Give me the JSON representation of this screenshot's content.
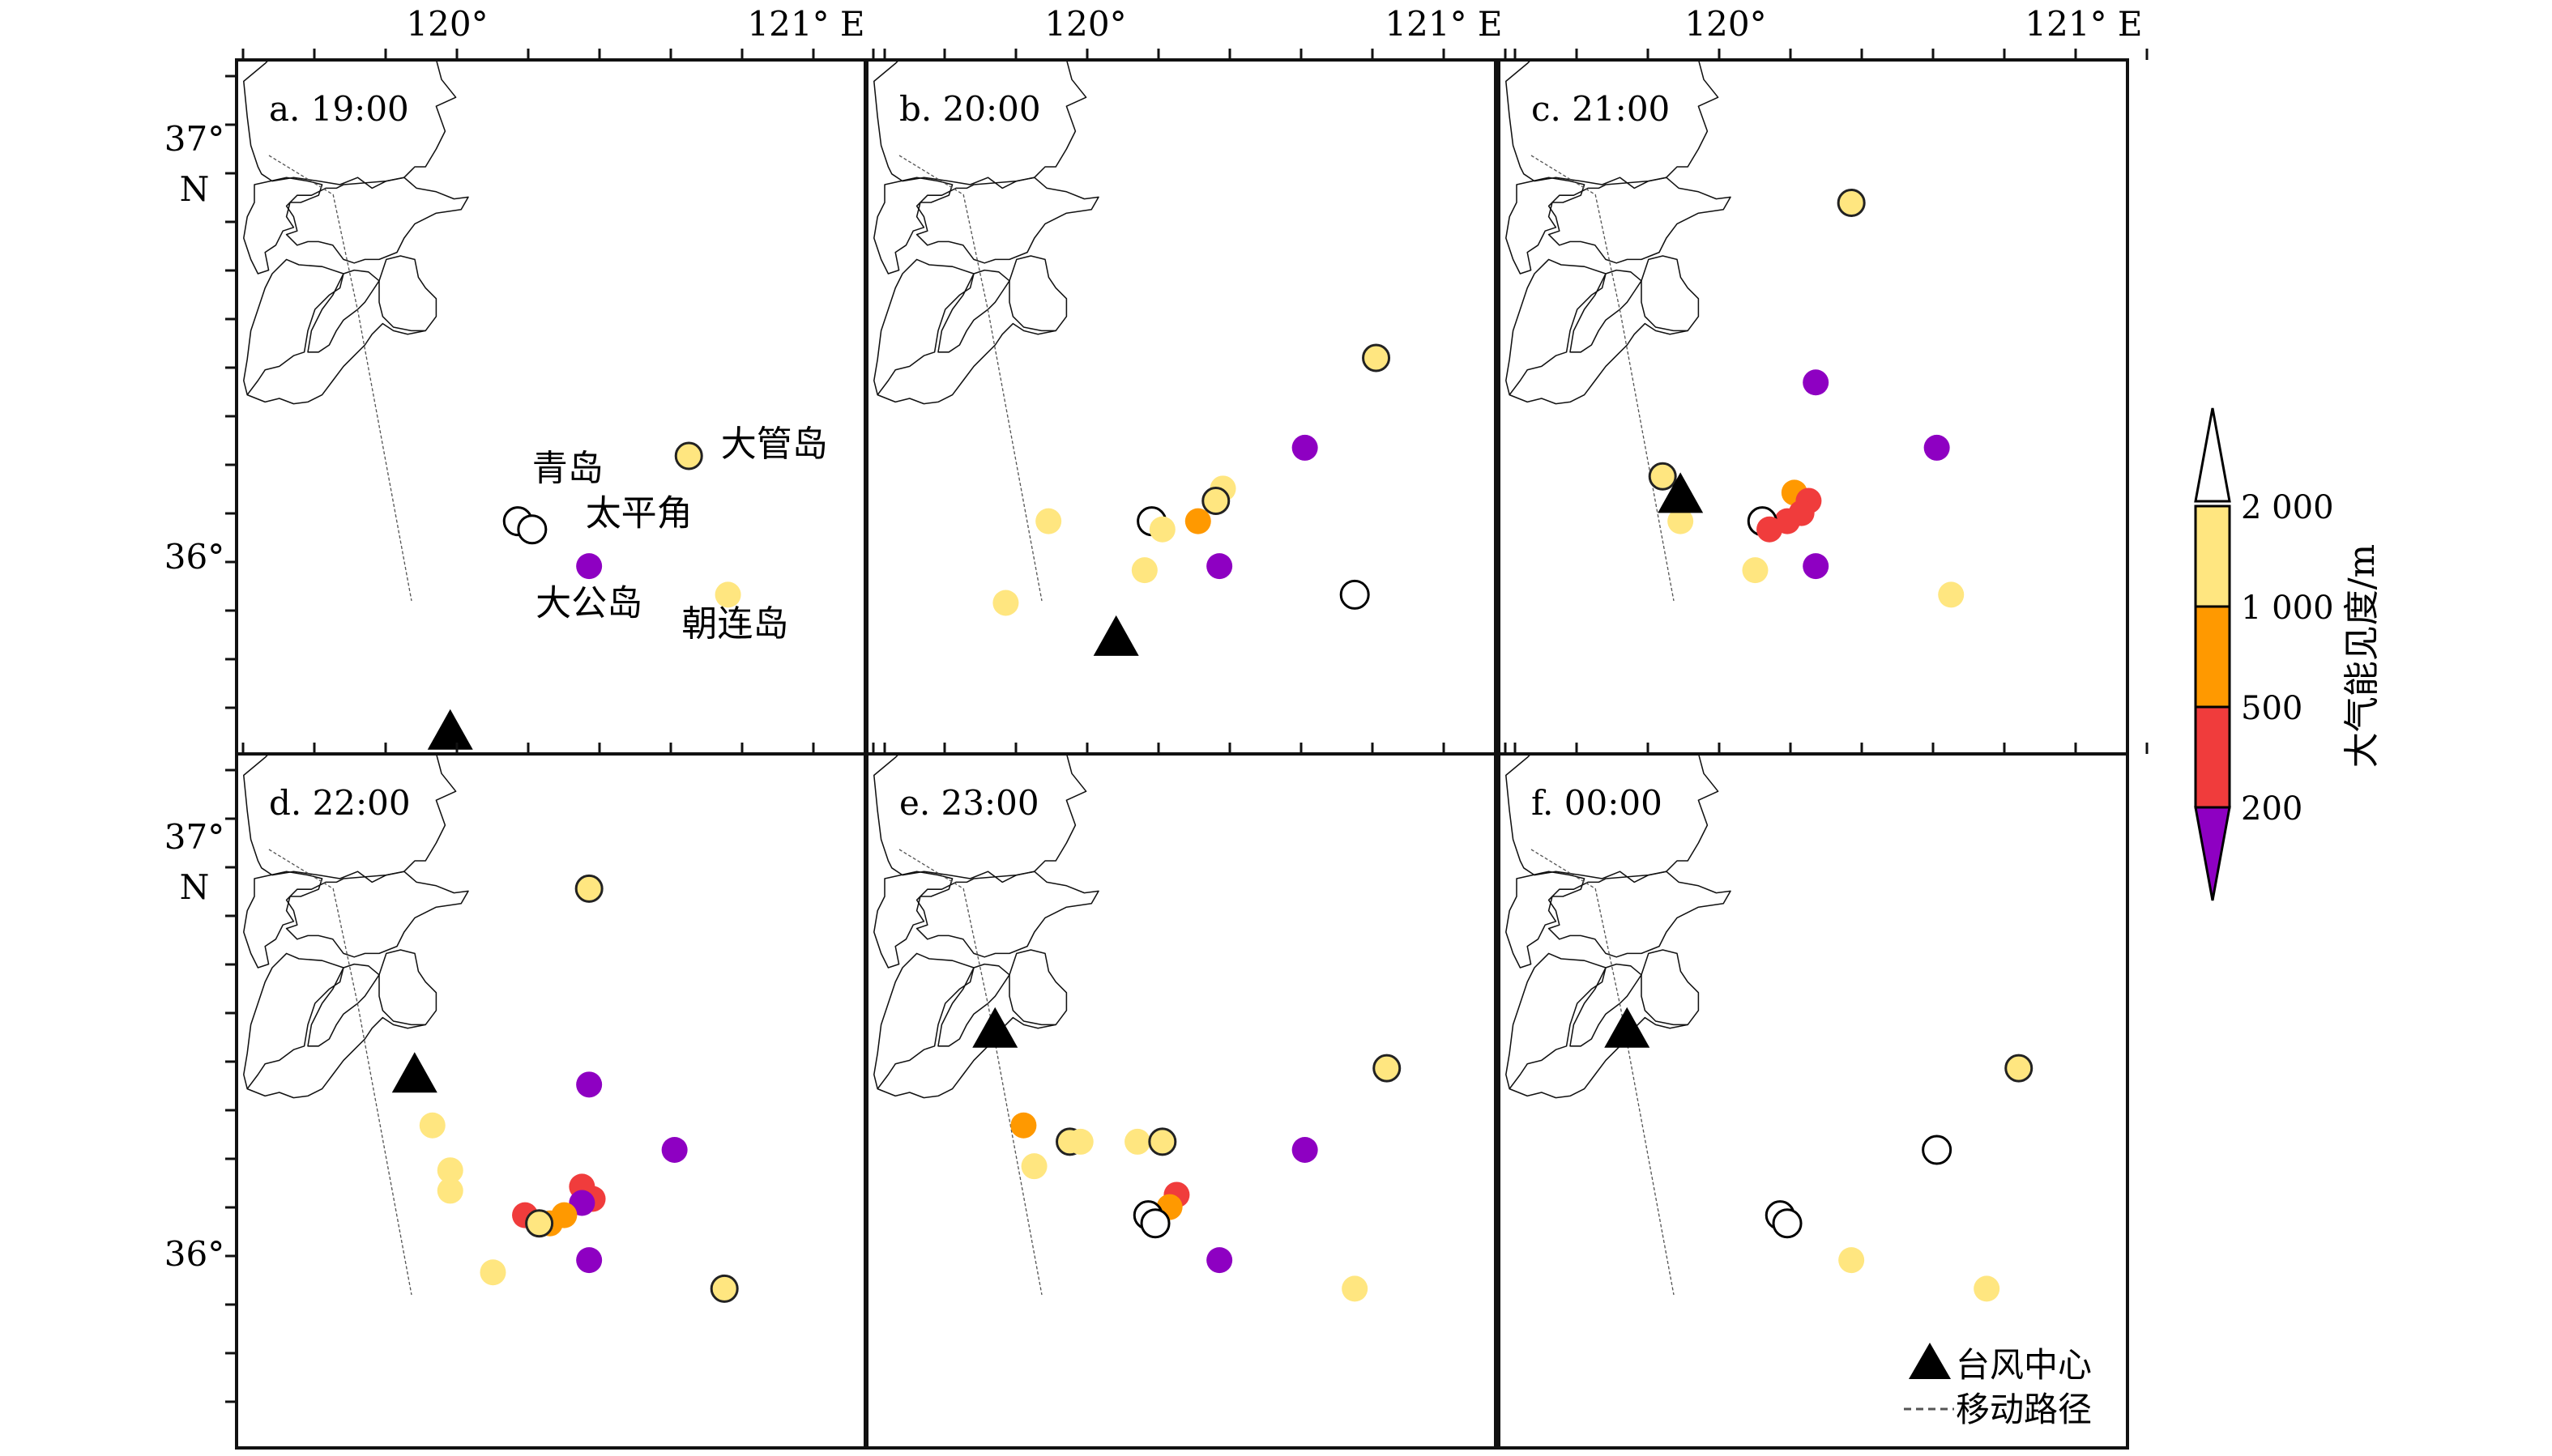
{
  "axes": {
    "lon_labels": [
      "120°",
      "121° E"
    ],
    "lat_labels": {
      "top_deg": "37°",
      "top_unit": "N",
      "bottom_deg": "36°"
    }
  },
  "panels": [
    {
      "id": "a",
      "title": "a. 19:00",
      "typhoon_center": {
        "lon": 120.1,
        "lat": 35.55
      },
      "points": [
        {
          "lon": 120.29,
          "lat": 36.07,
          "class": "white"
        },
        {
          "lon": 120.33,
          "lat": 36.05,
          "class": "white"
        },
        {
          "lon": 120.49,
          "lat": 35.96,
          "class": "purple"
        },
        {
          "lon": 120.77,
          "lat": 36.23,
          "class": "light"
        },
        {
          "lon": 120.88,
          "lat": 35.89,
          "class": "light"
        }
      ],
      "station_labels": [
        {
          "text": "青岛",
          "lon": 120.43,
          "lat": 36.17
        },
        {
          "text": "太平角",
          "lon": 120.63,
          "lat": 36.06
        },
        {
          "text": "大公岛",
          "lon": 120.49,
          "lat": 35.84
        },
        {
          "text": "大管岛",
          "lon": 121.01,
          "lat": 36.23
        },
        {
          "text": "朝连岛",
          "lon": 120.9,
          "lat": 35.79
        }
      ]
    },
    {
      "id": "b",
      "title": "b. 20:00",
      "typhoon_center": {
        "lon": 120.2,
        "lat": 35.78
      },
      "points": [
        {
          "lon": 120.93,
          "lat": 36.47,
          "class": "light"
        },
        {
          "lon": 120.73,
          "lat": 36.25,
          "class": "purple"
        },
        {
          "lon": 120.5,
          "lat": 36.15,
          "class": "light"
        },
        {
          "lon": 120.48,
          "lat": 36.12,
          "class": "light"
        },
        {
          "lon": 120.43,
          "lat": 36.07,
          "class": "orange"
        },
        {
          "lon": 120.01,
          "lat": 36.07,
          "class": "light"
        },
        {
          "lon": 120.3,
          "lat": 36.07,
          "class": "white"
        },
        {
          "lon": 120.33,
          "lat": 36.05,
          "class": "light"
        },
        {
          "lon": 120.28,
          "lat": 35.95,
          "class": "light"
        },
        {
          "lon": 120.49,
          "lat": 35.96,
          "class": "purple"
        },
        {
          "lon": 119.89,
          "lat": 35.87,
          "class": "light"
        },
        {
          "lon": 120.87,
          "lat": 35.89,
          "class": "white"
        }
      ]
    },
    {
      "id": "c",
      "title": "c. 21:00",
      "typhoon_center": {
        "lon": 120.01,
        "lat": 36.13
      },
      "points": [
        {
          "lon": 120.49,
          "lat": 36.85,
          "class": "light"
        },
        {
          "lon": 120.39,
          "lat": 36.41,
          "class": "purple"
        },
        {
          "lon": 120.73,
          "lat": 36.25,
          "class": "purple"
        },
        {
          "lon": 119.96,
          "lat": 36.18,
          "class": "light"
        },
        {
          "lon": 120.01,
          "lat": 36.07,
          "class": "light"
        },
        {
          "lon": 120.33,
          "lat": 36.14,
          "class": "orange"
        },
        {
          "lon": 120.37,
          "lat": 36.12,
          "class": "red"
        },
        {
          "lon": 120.35,
          "lat": 36.09,
          "class": "red"
        },
        {
          "lon": 120.31,
          "lat": 36.07,
          "class": "red"
        },
        {
          "lon": 120.24,
          "lat": 36.07,
          "class": "white"
        },
        {
          "lon": 120.26,
          "lat": 36.05,
          "class": "red"
        },
        {
          "lon": 120.22,
          "lat": 35.95,
          "class": "light"
        },
        {
          "lon": 120.39,
          "lat": 35.96,
          "class": "purple"
        },
        {
          "lon": 120.77,
          "lat": 35.89,
          "class": "light"
        }
      ]
    },
    {
      "id": "d",
      "title": "d. 22:00",
      "typhoon_center": {
        "lon": 120.0,
        "lat": 36.41
      },
      "points": [
        {
          "lon": 120.49,
          "lat": 36.87,
          "class": "light"
        },
        {
          "lon": 120.49,
          "lat": 36.39,
          "class": "purple"
        },
        {
          "lon": 120.05,
          "lat": 36.29,
          "class": "light"
        },
        {
          "lon": 120.73,
          "lat": 36.23,
          "class": "purple"
        },
        {
          "lon": 120.1,
          "lat": 36.18,
          "class": "light"
        },
        {
          "lon": 120.1,
          "lat": 36.13,
          "class": "light"
        },
        {
          "lon": 120.47,
          "lat": 36.14,
          "class": "red"
        },
        {
          "lon": 120.5,
          "lat": 36.11,
          "class": "red"
        },
        {
          "lon": 120.47,
          "lat": 36.1,
          "class": "purple"
        },
        {
          "lon": 120.42,
          "lat": 36.07,
          "class": "orange"
        },
        {
          "lon": 120.31,
          "lat": 36.07,
          "class": "red"
        },
        {
          "lon": 120.38,
          "lat": 36.05,
          "class": "orange"
        },
        {
          "lon": 120.35,
          "lat": 36.05,
          "class": "light"
        },
        {
          "lon": 120.22,
          "lat": 35.93,
          "class": "light"
        },
        {
          "lon": 120.49,
          "lat": 35.96,
          "class": "purple"
        },
        {
          "lon": 120.87,
          "lat": 35.89,
          "class": "light"
        }
      ]
    },
    {
      "id": "e",
      "title": "e. 23:00",
      "typhoon_center": {
        "lon": 119.86,
        "lat": 36.52
      },
      "points": [
        {
          "lon": 120.96,
          "lat": 36.43,
          "class": "light"
        },
        {
          "lon": 120.73,
          "lat": 36.23,
          "class": "purple"
        },
        {
          "lon": 119.94,
          "lat": 36.29,
          "class": "orange"
        },
        {
          "lon": 120.07,
          "lat": 36.25,
          "class": "light"
        },
        {
          "lon": 120.1,
          "lat": 36.25,
          "class": "light"
        },
        {
          "lon": 120.26,
          "lat": 36.25,
          "class": "light"
        },
        {
          "lon": 120.33,
          "lat": 36.25,
          "class": "light"
        },
        {
          "lon": 119.97,
          "lat": 36.19,
          "class": "light"
        },
        {
          "lon": 120.37,
          "lat": 36.12,
          "class": "red"
        },
        {
          "lon": 120.35,
          "lat": 36.09,
          "class": "orange"
        },
        {
          "lon": 120.29,
          "lat": 36.07,
          "class": "white"
        },
        {
          "lon": 120.31,
          "lat": 36.05,
          "class": "white"
        },
        {
          "lon": 120.49,
          "lat": 35.96,
          "class": "purple"
        },
        {
          "lon": 120.87,
          "lat": 35.89,
          "class": "light"
        }
      ]
    },
    {
      "id": "f",
      "title": "f. 00:00",
      "typhoon_center": {
        "lon": 119.86,
        "lat": 36.52
      },
      "points": [
        {
          "lon": 120.96,
          "lat": 36.43,
          "class": "light"
        },
        {
          "lon": 120.73,
          "lat": 36.23,
          "class": "white"
        },
        {
          "lon": 120.29,
          "lat": 36.07,
          "class": "white"
        },
        {
          "lon": 120.31,
          "lat": 36.05,
          "class": "white"
        },
        {
          "lon": 120.49,
          "lat": 35.96,
          "class": "light"
        },
        {
          "lon": 120.87,
          "lat": 35.89,
          "class": "light"
        }
      ]
    }
  ],
  "colorbar": {
    "title": "大气能见度/m",
    "tick_labels": [
      "2 000",
      "1 000",
      "500",
      "200"
    ],
    "colors": {
      "top": "#ffffff",
      "light": "#ffe680",
      "orange": "#ff9900",
      "red": "#f03c3c",
      "purple": "#8e00c2"
    }
  },
  "legend": {
    "typhoon_label": "台风中心",
    "track_label": "移动路径"
  }
}
